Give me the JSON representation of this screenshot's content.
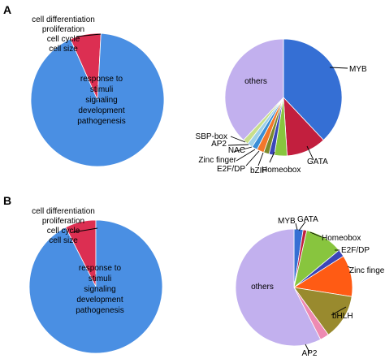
{
  "panels": [
    {
      "label": "A"
    },
    {
      "label": "B"
    }
  ],
  "chart_data": [
    {
      "type": "pie",
      "panel": "A",
      "series": [
        {
          "name": "cell differentiation\nproliferation\ncell cycle\ncell size",
          "value": 7.5,
          "color": "#dc2f52"
        },
        {
          "name": "response to\nstimuli\nsignaling\ndevelopment\npathogenesis",
          "value": 92.5,
          "color": "#4a8fe3"
        }
      ]
    },
    {
      "type": "pie",
      "panel": "A",
      "series": [
        {
          "name": "MYB",
          "value": 38.0,
          "color": "#356fd4"
        },
        {
          "name": "GATA",
          "value": 11.0,
          "color": "#c21f3e"
        },
        {
          "name": "Homeobox",
          "value": 3.5,
          "color": "#88c53e"
        },
        {
          "name": "bZIP",
          "value": 1.5,
          "color": "#3a46b8"
        },
        {
          "name": "E2F/DP",
          "value": 1.5,
          "color": "#7a8a2c"
        },
        {
          "name": "Zinc finger",
          "value": 2.0,
          "color": "#f2772b"
        },
        {
          "name": "NAC",
          "value": 1.5,
          "color": "#3a8ed6"
        },
        {
          "name": "AP2",
          "value": 1.5,
          "color": "#9ed0e8"
        },
        {
          "name": "SBP-box",
          "value": 1.5,
          "color": "#c8df8a"
        },
        {
          "name": "others",
          "value": 38.0,
          "color": "#c2b0ee"
        }
      ]
    },
    {
      "type": "pie",
      "panel": "B",
      "series": [
        {
          "name": "cell differentiation\nproliferation\ncell cycle\ncell size",
          "value": 7.5,
          "color": "#dc2f52"
        },
        {
          "name": "response to\nstimuli\nsignaling\ndevelopment\npathogenesis",
          "value": 92.5,
          "color": "#4a8fe3"
        }
      ]
    },
    {
      "type": "pie",
      "panel": "B",
      "series": [
        {
          "name": "MYB",
          "value": 2.5,
          "color": "#356fd4"
        },
        {
          "name": "GATA",
          "value": 1.0,
          "color": "#c21f3e"
        },
        {
          "name": "Homeobox",
          "value": 10.5,
          "color": "#88c53e"
        },
        {
          "name": "E2F/DP",
          "value": 2.0,
          "color": "#3a46b8"
        },
        {
          "name": "Zinc finger",
          "value": 11.5,
          "color": "#ff5b14"
        },
        {
          "name": "bHLH",
          "value": 12.5,
          "color": "#998a2e"
        },
        {
          "name": "AP2",
          "value": 2.5,
          "color": "#ee8ab2"
        },
        {
          "name": "others",
          "value": 57.5,
          "color": "#c2b0ee"
        }
      ]
    }
  ]
}
